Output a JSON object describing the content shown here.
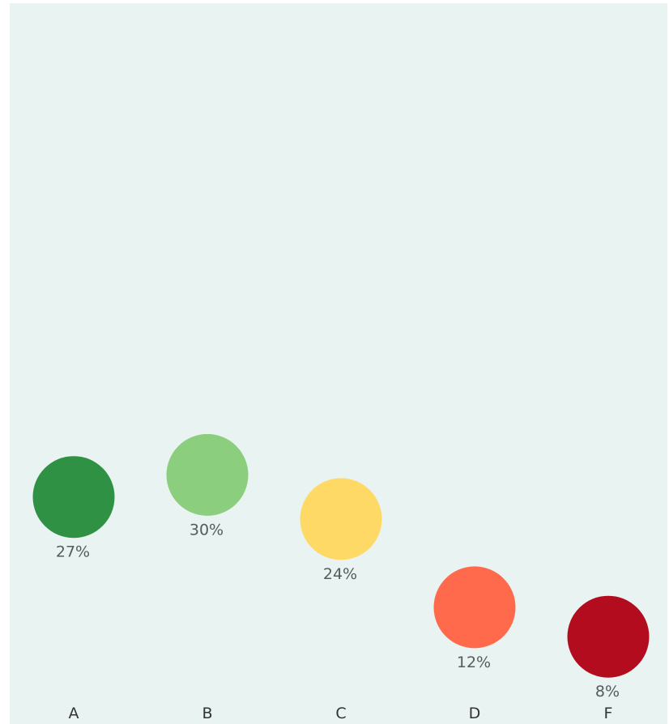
{
  "chart_data": {
    "type": "scatter",
    "categories": [
      "A",
      "B",
      "C",
      "D",
      "F"
    ],
    "values": [
      27,
      30,
      24,
      12,
      8
    ],
    "value_labels": [
      "27%",
      "30%",
      "24%",
      "12%",
      "8%"
    ],
    "colors": [
      "#2e9143",
      "#8bcf7e",
      "#ffd966",
      "#ff6a4c",
      "#b30c1f"
    ],
    "background_color": "#e9f3f1",
    "title": "",
    "xlabel": "",
    "ylabel": "",
    "ylim": [
      0,
      100
    ],
    "grid": false,
    "legend": "none"
  }
}
